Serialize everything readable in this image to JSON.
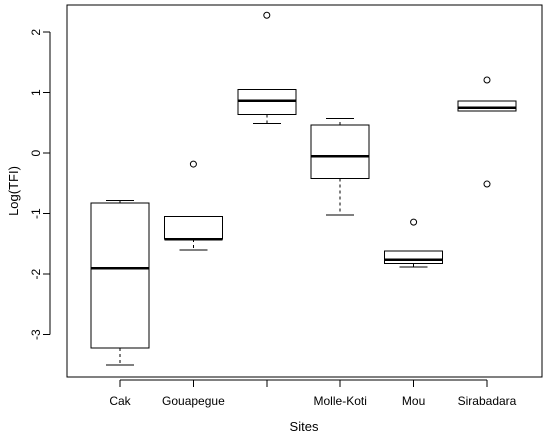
{
  "chart_data": {
    "type": "boxplot",
    "title": "",
    "xlabel": "Sites",
    "ylabel": "Log(TFI)",
    "ylim": [
      -3.7,
      2.45
    ],
    "yticks": [
      -3,
      -2,
      -1,
      0,
      1,
      2
    ],
    "ytick_labels": [
      "-3",
      "-2",
      "-1",
      "0",
      "1",
      "2"
    ],
    "grid": false,
    "legend": "none",
    "categories": [
      "Cak",
      "Gouapegue",
      "",
      "Molle-Koti",
      "Mou",
      "Sirabadara"
    ],
    "boxes": [
      {
        "category": "Cak",
        "whisker_low": -3.5,
        "q1": -3.22,
        "median": -1.9,
        "q3": -0.82,
        "whisker_high": -0.78,
        "outliers": []
      },
      {
        "category": "Gouapegue",
        "whisker_low": -1.6,
        "q1": -1.42,
        "median": -1.42,
        "q3": -1.05,
        "whisker_high": -1.05,
        "outliers": [
          -0.18
        ]
      },
      {
        "category": "",
        "whisker_low": 0.49,
        "q1": 0.64,
        "median": 0.87,
        "q3": 1.05,
        "whisker_high": 1.05,
        "outliers": [
          2.28
        ]
      },
      {
        "category": "Molle-Koti",
        "whisker_low": -1.02,
        "q1": -0.42,
        "median": -0.05,
        "q3": 0.47,
        "whisker_high": 0.57,
        "outliers": []
      },
      {
        "category": "Mou",
        "whisker_low": -1.88,
        "q1": -1.82,
        "median": -1.76,
        "q3": -1.62,
        "whisker_high": -1.62,
        "outliers": [
          -1.14
        ]
      },
      {
        "category": "Sirabadara",
        "whisker_low": 0.7,
        "q1": 0.7,
        "median": 0.75,
        "q3": 0.86,
        "whisker_high": 0.86,
        "outliers": [
          1.21,
          -0.51
        ]
      }
    ],
    "colors": {
      "stroke": "#000000",
      "background": "#ffffff"
    }
  }
}
